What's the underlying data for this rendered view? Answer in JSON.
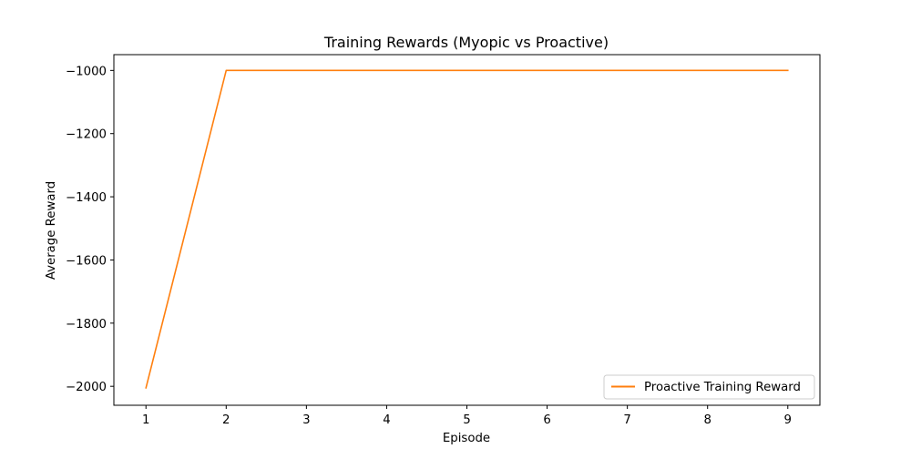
{
  "chart_data": {
    "type": "line",
    "title": "Training Rewards (Myopic vs Proactive)",
    "xlabel": "Episode",
    "ylabel": "Average Reward",
    "xlim": [
      0.6,
      9.4
    ],
    "ylim": [
      -2060,
      -950
    ],
    "x_ticks": [
      1,
      2,
      3,
      4,
      5,
      6,
      7,
      8,
      9
    ],
    "y_ticks": [
      -2000,
      -1800,
      -1600,
      -1400,
      -1200,
      -1000
    ],
    "grid": false,
    "legend_position": "lower-right",
    "series": [
      {
        "name": "Proactive Training Reward",
        "color": "#ff7f0e",
        "x": [
          1,
          2,
          3,
          4,
          5,
          6,
          7,
          8,
          9
        ],
        "y": [
          -2005,
          -1000,
          -1000,
          -1000,
          -1000,
          -1000,
          -1000,
          -1000,
          -1000
        ]
      }
    ]
  }
}
